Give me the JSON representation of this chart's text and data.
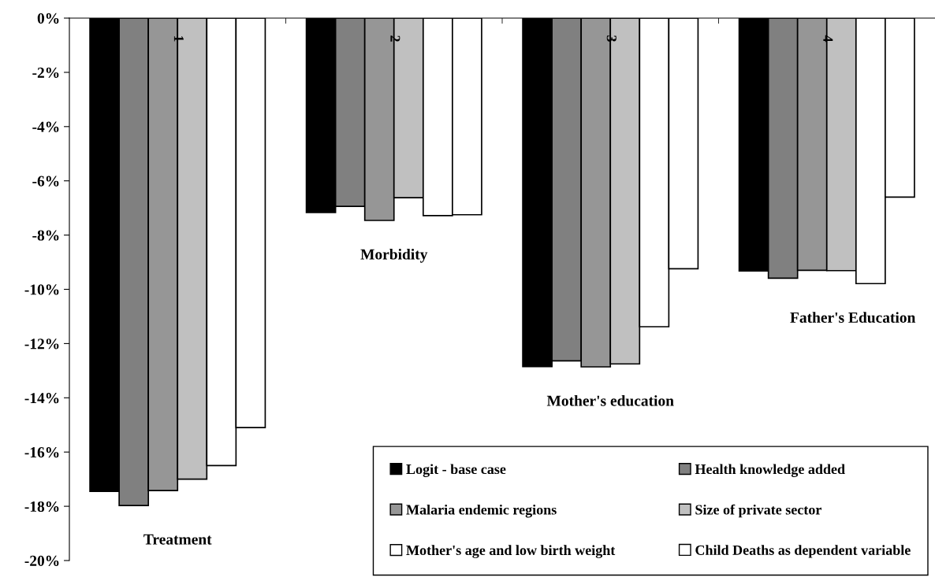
{
  "chart_data": {
    "type": "bar",
    "categories": [
      "1",
      "2",
      "3",
      "4"
    ],
    "series": [
      {
        "name": "Logit - base case",
        "color": "#000000",
        "values": [
          -17.45,
          -7.17,
          -12.85,
          -9.32
        ]
      },
      {
        "name": "Health knowledge added",
        "color": "#808080",
        "values": [
          -17.97,
          -6.94,
          -12.64,
          -9.59
        ]
      },
      {
        "name": "Malaria endemic regions",
        "color": "#969696",
        "values": [
          -17.42,
          -7.46,
          -12.86,
          -9.3
        ]
      },
      {
        "name": "Size of private sector",
        "color": "#c0c0c0",
        "values": [
          -17.0,
          -6.62,
          -12.75,
          -9.31
        ]
      },
      {
        "name": "Mother's age and low birth weight",
        "color": "#ffffff",
        "values": [
          -16.5,
          -7.28,
          -11.38,
          -9.79
        ]
      },
      {
        "name": "Child Deaths as dependent variable",
        "color": "#ffffff",
        "values": [
          -15.1,
          -7.25,
          -9.24,
          -6.6
        ]
      }
    ],
    "ylim": [
      -20,
      0
    ],
    "yticks": [
      {
        "value": 0,
        "label": "0%"
      },
      {
        "value": -2,
        "label": "-2%"
      },
      {
        "value": -4,
        "label": "-4%"
      },
      {
        "value": -6,
        "label": "-6%"
      },
      {
        "value": -8,
        "label": "-8%"
      },
      {
        "value": -10,
        "label": "-10%"
      },
      {
        "value": -12,
        "label": "-12%"
      },
      {
        "value": -14,
        "label": "-14%"
      },
      {
        "value": -16,
        "label": "-16%"
      },
      {
        "value": -18,
        "label": "-18%"
      },
      {
        "value": -20,
        "label": "-20%"
      }
    ],
    "annotations": [
      "Treatment",
      "Morbidity",
      "Mother's education",
      "Father's Education"
    ],
    "grid": false,
    "legend": "bottom right"
  }
}
